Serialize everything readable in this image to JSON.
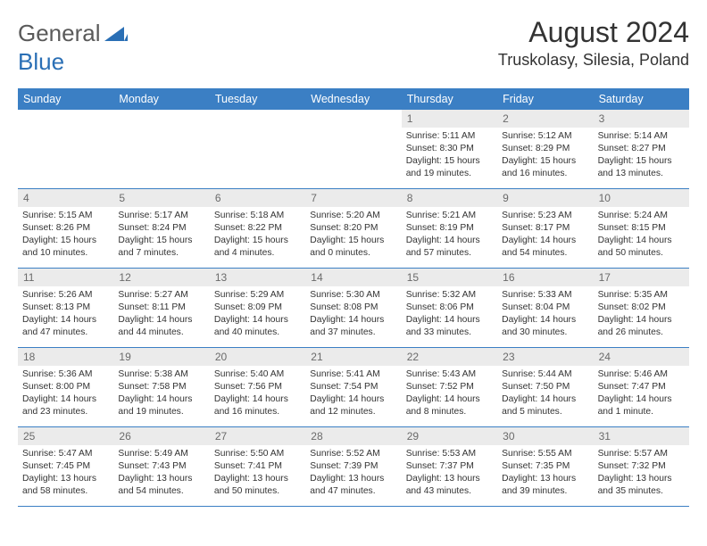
{
  "logo": {
    "text1": "General",
    "text2": "Blue"
  },
  "title": "August 2024",
  "location": "Truskolasy, Silesia, Poland",
  "colors": {
    "header_bg": "#3b7fc4",
    "header_text": "#ffffff",
    "daynum_bg": "#ebebeb",
    "daynum_text": "#6a6a6a",
    "body_text": "#333333",
    "logo_gray": "#5a5a5a",
    "logo_blue": "#2a6fb5"
  },
  "weekdays": [
    "Sunday",
    "Monday",
    "Tuesday",
    "Wednesday",
    "Thursday",
    "Friday",
    "Saturday"
  ],
  "weeks": [
    [
      {
        "n": "",
        "sr": "",
        "ss": "",
        "dl": ""
      },
      {
        "n": "",
        "sr": "",
        "ss": "",
        "dl": ""
      },
      {
        "n": "",
        "sr": "",
        "ss": "",
        "dl": ""
      },
      {
        "n": "",
        "sr": "",
        "ss": "",
        "dl": ""
      },
      {
        "n": "1",
        "sr": "Sunrise: 5:11 AM",
        "ss": "Sunset: 8:30 PM",
        "dl": "Daylight: 15 hours and 19 minutes."
      },
      {
        "n": "2",
        "sr": "Sunrise: 5:12 AM",
        "ss": "Sunset: 8:29 PM",
        "dl": "Daylight: 15 hours and 16 minutes."
      },
      {
        "n": "3",
        "sr": "Sunrise: 5:14 AM",
        "ss": "Sunset: 8:27 PM",
        "dl": "Daylight: 15 hours and 13 minutes."
      }
    ],
    [
      {
        "n": "4",
        "sr": "Sunrise: 5:15 AM",
        "ss": "Sunset: 8:26 PM",
        "dl": "Daylight: 15 hours and 10 minutes."
      },
      {
        "n": "5",
        "sr": "Sunrise: 5:17 AM",
        "ss": "Sunset: 8:24 PM",
        "dl": "Daylight: 15 hours and 7 minutes."
      },
      {
        "n": "6",
        "sr": "Sunrise: 5:18 AM",
        "ss": "Sunset: 8:22 PM",
        "dl": "Daylight: 15 hours and 4 minutes."
      },
      {
        "n": "7",
        "sr": "Sunrise: 5:20 AM",
        "ss": "Sunset: 8:20 PM",
        "dl": "Daylight: 15 hours and 0 minutes."
      },
      {
        "n": "8",
        "sr": "Sunrise: 5:21 AM",
        "ss": "Sunset: 8:19 PM",
        "dl": "Daylight: 14 hours and 57 minutes."
      },
      {
        "n": "9",
        "sr": "Sunrise: 5:23 AM",
        "ss": "Sunset: 8:17 PM",
        "dl": "Daylight: 14 hours and 54 minutes."
      },
      {
        "n": "10",
        "sr": "Sunrise: 5:24 AM",
        "ss": "Sunset: 8:15 PM",
        "dl": "Daylight: 14 hours and 50 minutes."
      }
    ],
    [
      {
        "n": "11",
        "sr": "Sunrise: 5:26 AM",
        "ss": "Sunset: 8:13 PM",
        "dl": "Daylight: 14 hours and 47 minutes."
      },
      {
        "n": "12",
        "sr": "Sunrise: 5:27 AM",
        "ss": "Sunset: 8:11 PM",
        "dl": "Daylight: 14 hours and 44 minutes."
      },
      {
        "n": "13",
        "sr": "Sunrise: 5:29 AM",
        "ss": "Sunset: 8:09 PM",
        "dl": "Daylight: 14 hours and 40 minutes."
      },
      {
        "n": "14",
        "sr": "Sunrise: 5:30 AM",
        "ss": "Sunset: 8:08 PM",
        "dl": "Daylight: 14 hours and 37 minutes."
      },
      {
        "n": "15",
        "sr": "Sunrise: 5:32 AM",
        "ss": "Sunset: 8:06 PM",
        "dl": "Daylight: 14 hours and 33 minutes."
      },
      {
        "n": "16",
        "sr": "Sunrise: 5:33 AM",
        "ss": "Sunset: 8:04 PM",
        "dl": "Daylight: 14 hours and 30 minutes."
      },
      {
        "n": "17",
        "sr": "Sunrise: 5:35 AM",
        "ss": "Sunset: 8:02 PM",
        "dl": "Daylight: 14 hours and 26 minutes."
      }
    ],
    [
      {
        "n": "18",
        "sr": "Sunrise: 5:36 AM",
        "ss": "Sunset: 8:00 PM",
        "dl": "Daylight: 14 hours and 23 minutes."
      },
      {
        "n": "19",
        "sr": "Sunrise: 5:38 AM",
        "ss": "Sunset: 7:58 PM",
        "dl": "Daylight: 14 hours and 19 minutes."
      },
      {
        "n": "20",
        "sr": "Sunrise: 5:40 AM",
        "ss": "Sunset: 7:56 PM",
        "dl": "Daylight: 14 hours and 16 minutes."
      },
      {
        "n": "21",
        "sr": "Sunrise: 5:41 AM",
        "ss": "Sunset: 7:54 PM",
        "dl": "Daylight: 14 hours and 12 minutes."
      },
      {
        "n": "22",
        "sr": "Sunrise: 5:43 AM",
        "ss": "Sunset: 7:52 PM",
        "dl": "Daylight: 14 hours and 8 minutes."
      },
      {
        "n": "23",
        "sr": "Sunrise: 5:44 AM",
        "ss": "Sunset: 7:50 PM",
        "dl": "Daylight: 14 hours and 5 minutes."
      },
      {
        "n": "24",
        "sr": "Sunrise: 5:46 AM",
        "ss": "Sunset: 7:47 PM",
        "dl": "Daylight: 14 hours and 1 minute."
      }
    ],
    [
      {
        "n": "25",
        "sr": "Sunrise: 5:47 AM",
        "ss": "Sunset: 7:45 PM",
        "dl": "Daylight: 13 hours and 58 minutes."
      },
      {
        "n": "26",
        "sr": "Sunrise: 5:49 AM",
        "ss": "Sunset: 7:43 PM",
        "dl": "Daylight: 13 hours and 54 minutes."
      },
      {
        "n": "27",
        "sr": "Sunrise: 5:50 AM",
        "ss": "Sunset: 7:41 PM",
        "dl": "Daylight: 13 hours and 50 minutes."
      },
      {
        "n": "28",
        "sr": "Sunrise: 5:52 AM",
        "ss": "Sunset: 7:39 PM",
        "dl": "Daylight: 13 hours and 47 minutes."
      },
      {
        "n": "29",
        "sr": "Sunrise: 5:53 AM",
        "ss": "Sunset: 7:37 PM",
        "dl": "Daylight: 13 hours and 43 minutes."
      },
      {
        "n": "30",
        "sr": "Sunrise: 5:55 AM",
        "ss": "Sunset: 7:35 PM",
        "dl": "Daylight: 13 hours and 39 minutes."
      },
      {
        "n": "31",
        "sr": "Sunrise: 5:57 AM",
        "ss": "Sunset: 7:32 PM",
        "dl": "Daylight: 13 hours and 35 minutes."
      }
    ]
  ]
}
